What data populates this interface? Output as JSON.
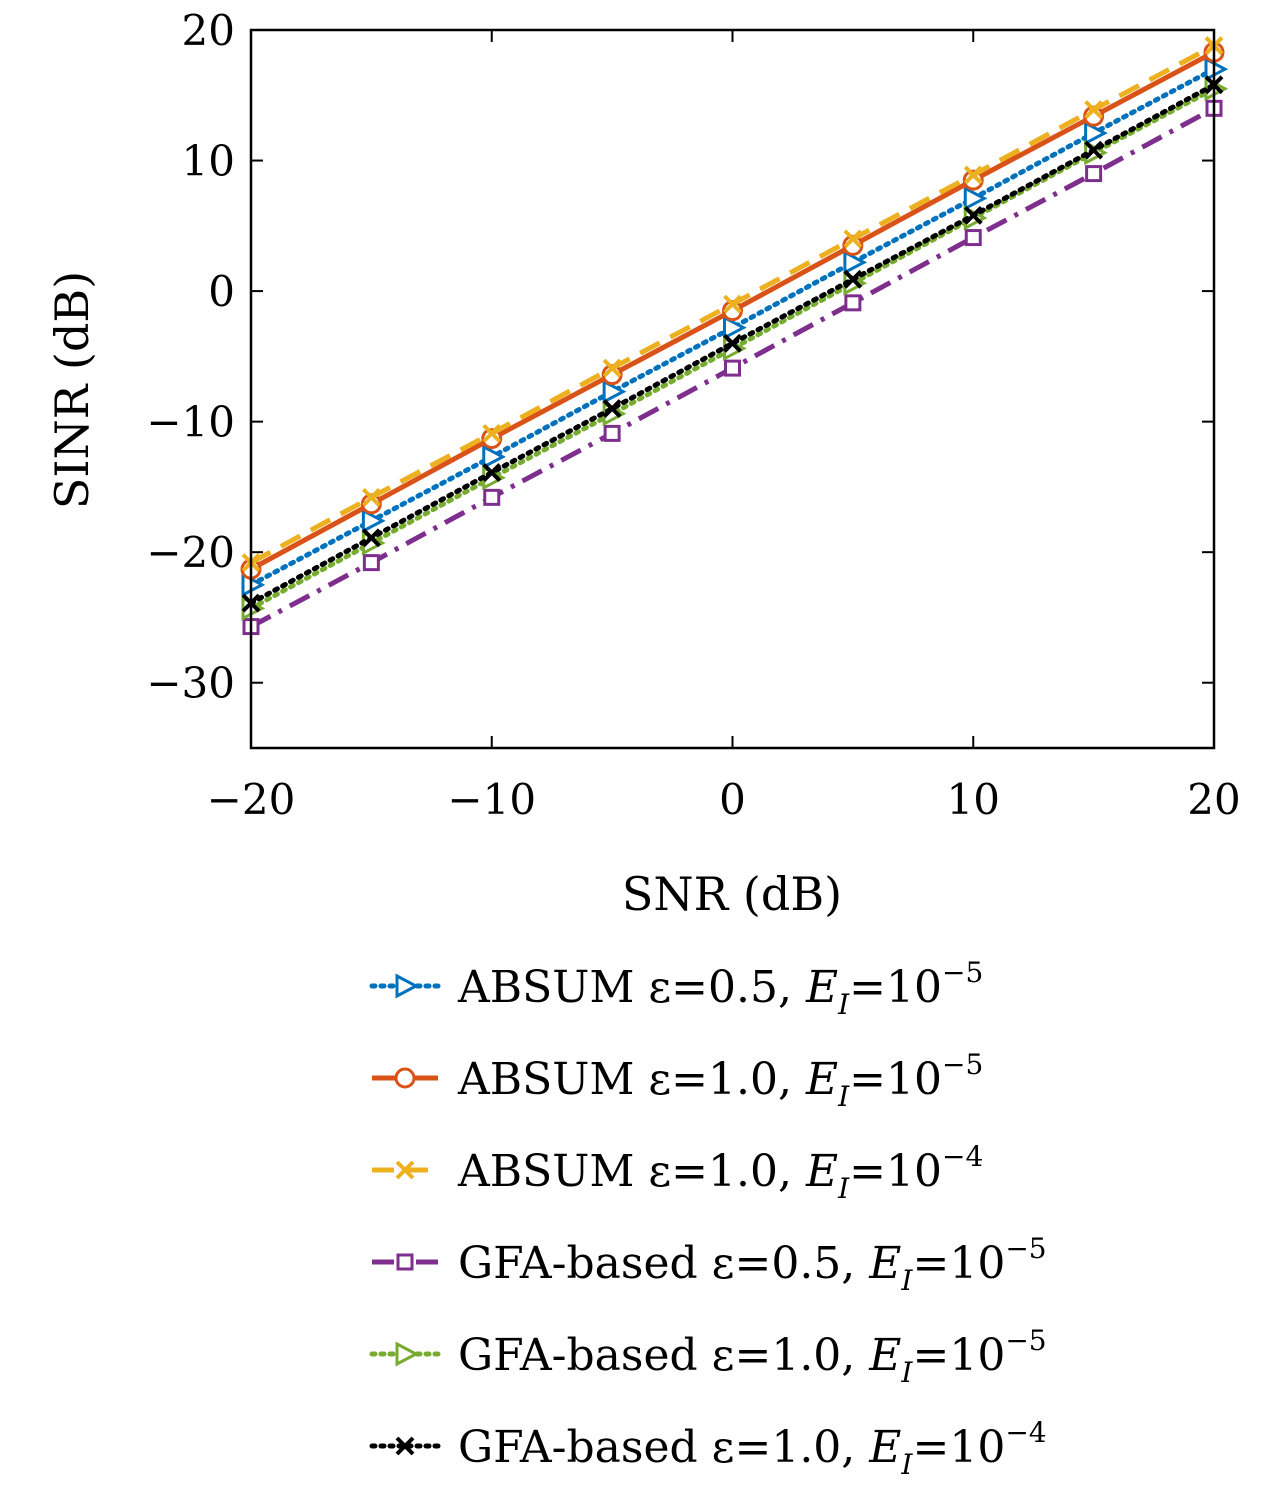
{
  "chart_data": {
    "type": "line",
    "title": "",
    "xlabel": "SNR (dB)",
    "ylabel": "SINR (dB)",
    "xlim": [
      -20,
      20
    ],
    "ylim": [
      -35,
      20
    ],
    "x_ticks": [
      -20,
      -10,
      0,
      10,
      20
    ],
    "y_ticks": [
      -30,
      -20,
      -10,
      0,
      10,
      20
    ],
    "x_tick_labels": [
      "−20",
      "−10",
      "0",
      "10",
      "20"
    ],
    "y_tick_labels": [
      "−30",
      "−20",
      "−10",
      "0",
      "10",
      "20"
    ],
    "grid": false,
    "legend_position": "below",
    "x": [
      -20,
      -15,
      -10,
      -5,
      0,
      5,
      10,
      15,
      20
    ],
    "series": [
      {
        "label_main": "ABSUM ε=0.5, ",
        "label_var": "E",
        "label_sub": "I",
        "label_eq": "=10",
        "label_exp": "−5",
        "color": "#0072BD",
        "dash": "dotted",
        "marker": "triangle-right",
        "values": [
          -22.5,
          -17.6,
          -12.7,
          -7.7,
          -2.8,
          2.2,
          7.1,
          12.1,
          17.0
        ]
      },
      {
        "label_main": "ABSUM ε=1.0, ",
        "label_var": "E",
        "label_sub": "I",
        "label_eq": "=10",
        "label_exp": "−5",
        "color": "#D95319",
        "dash": "solid",
        "marker": "circle",
        "values": [
          -21.3,
          -16.3,
          -11.3,
          -6.4,
          -1.5,
          3.5,
          8.5,
          13.4,
          18.3
        ]
      },
      {
        "label_main": "ABSUM ε=1.0, ",
        "label_var": "E",
        "label_sub": "I",
        "label_eq": "=10",
        "label_exp": "−4",
        "color": "#EDB120",
        "dash": "dashed",
        "marker": "x",
        "values": [
          -20.8,
          -15.8,
          -10.9,
          -5.9,
          -1.0,
          4.0,
          8.9,
          13.9,
          18.8
        ]
      },
      {
        "label_main": "GFA-based ε=0.5, ",
        "label_var": "E",
        "label_sub": "I",
        "label_eq": "=10",
        "label_exp": "−5",
        "color": "#7E2F8E",
        "dash": "dashdot",
        "marker": "square",
        "values": [
          -25.7,
          -20.8,
          -15.8,
          -10.9,
          -5.9,
          -0.9,
          4.1,
          9.0,
          14.0
        ]
      },
      {
        "label_main": "GFA-based ε=1.0, ",
        "label_var": "E",
        "label_sub": "I",
        "label_eq": "=10",
        "label_exp": "−5",
        "color": "#77AC30",
        "dash": "dotted",
        "marker": "triangle-right",
        "values": [
          -24.3,
          -19.3,
          -14.3,
          -9.4,
          -4.4,
          0.6,
          5.6,
          10.6,
          15.5
        ]
      },
      {
        "label_main": "GFA-based ε=1.0, ",
        "label_var": "E",
        "label_sub": "I",
        "label_eq": "=10",
        "label_exp": "−4",
        "color": "#000000",
        "dash": "dotted",
        "marker": "x",
        "values": [
          -23.9,
          -18.9,
          -13.9,
          -9.0,
          -4.0,
          0.9,
          5.8,
          10.8,
          15.8
        ]
      }
    ]
  }
}
